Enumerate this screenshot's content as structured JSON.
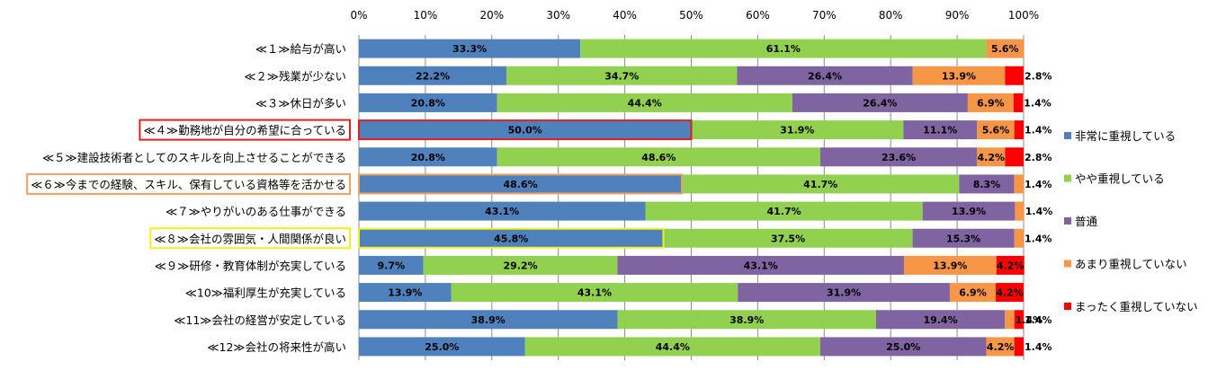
{
  "chart_data": {
    "type": "bar",
    "orientation": "horizontal",
    "stacked": "percent",
    "xlim": [
      0,
      100
    ],
    "x_ticks": [
      "0%",
      "10%",
      "20%",
      "30%",
      "40%",
      "50%",
      "60%",
      "70%",
      "80%",
      "90%",
      "100%"
    ],
    "legend_position": "right",
    "categories": [
      "≪１≫給与が高い",
      "≪２≫残業が少ない",
      "≪３≫休日が多い",
      "≪４≫勤務地が自分の希望に合っている",
      "≪５≫建設技術者としてのスキルを向上させることができる",
      "≪６≫今までの経験、スキル、保有している資格等を活かせる",
      "≪７≫やりがいのある仕事ができる",
      "≪８≫会社の雰囲気・人間関係が良い",
      "≪９≫研修・教育体制が充実している",
      "≪10≫福利厚生が充実している",
      "≪11≫会社の経営が安定している",
      "≪12≫会社の将来性が高い"
    ],
    "highlighted_categories": [
      {
        "index": 3,
        "color": "#E02020"
      },
      {
        "index": 5,
        "color": "#F0A060"
      },
      {
        "index": 7,
        "color": "#F0F020"
      }
    ],
    "series": [
      {
        "name": "非常に重視している",
        "color": "#4F81BD",
        "values": [
          33.3,
          22.2,
          20.8,
          50.0,
          20.8,
          48.6,
          43.1,
          45.8,
          9.7,
          13.9,
          38.9,
          25.0
        ],
        "labels": [
          "33.3%",
          "22.2%",
          "20.8%",
          "50.0%",
          "20.8%",
          "48.6%",
          "43.1%",
          "45.8%",
          "9.7%",
          "13.9%",
          "38.9%",
          "25.0%"
        ]
      },
      {
        "name": "やや重視している",
        "color": "#92D050",
        "values": [
          61.1,
          34.7,
          44.4,
          31.9,
          48.6,
          41.7,
          41.7,
          37.5,
          29.2,
          43.1,
          38.9,
          44.4
        ],
        "labels": [
          "61.1%",
          "34.7%",
          "44.4%",
          "31.9%",
          "48.6%",
          "41.7%",
          "41.7%",
          "37.5%",
          "29.2%",
          "43.1%",
          "38.9%",
          "44.4%"
        ]
      },
      {
        "name": "普通",
        "color": "#8064A2",
        "values": [
          0,
          26.4,
          26.4,
          11.1,
          23.6,
          8.3,
          13.9,
          15.3,
          43.1,
          31.9,
          19.4,
          25.0
        ],
        "labels": [
          "",
          "26.4%",
          "26.4%",
          "11.1%",
          "23.6%",
          "8.3%",
          "13.9%",
          "15.3%",
          "43.1%",
          "31.9%",
          "19.4%",
          "25.0%"
        ]
      },
      {
        "name": "あまり重視していない",
        "color": "#F79646",
        "values": [
          5.6,
          13.9,
          6.9,
          5.6,
          4.2,
          1.4,
          1.4,
          1.4,
          13.9,
          6.9,
          1.4,
          4.2
        ],
        "labels": [
          "5.6%",
          "13.9%",
          "6.9%",
          "5.6%",
          "4.2%",
          "1.4%",
          "1.4%",
          "1.4%",
          "13.9%",
          "6.9%",
          "1.4%",
          "4.2%"
        ]
      },
      {
        "name": "まったく重視していない",
        "color": "#FF0000",
        "values": [
          0,
          2.8,
          1.4,
          1.4,
          2.8,
          0,
          0,
          0,
          4.2,
          4.2,
          1.4,
          1.4
        ],
        "labels": [
          "",
          "2.8%",
          "1.4%",
          "1.4%",
          "2.8%",
          "",
          "",
          "",
          "4.2%",
          "4.2%",
          "1.4%",
          "1.4%"
        ]
      }
    ]
  }
}
